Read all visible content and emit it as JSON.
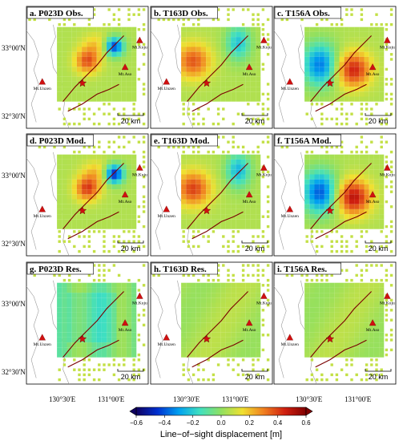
{
  "panels": [
    {
      "label": "a. P023D Obs.",
      "track": "P023D",
      "kind": "obs"
    },
    {
      "label": "b. T163D Obs.",
      "track": "T163D",
      "kind": "obs"
    },
    {
      "label": "c. T156A Obs.",
      "track": "T156A",
      "kind": "obs"
    },
    {
      "label": "d. P023D Mod.",
      "track": "P023D",
      "kind": "mod"
    },
    {
      "label": "e. T163D Mod.",
      "track": "T163D",
      "kind": "mod"
    },
    {
      "label": "f. T156A Mod.",
      "track": "T156A",
      "kind": "mod"
    },
    {
      "label": "g. P023D Res.",
      "track": "P023D",
      "kind": "res"
    },
    {
      "label": "h. T163D Res.",
      "track": "T163D",
      "kind": "res"
    },
    {
      "label": "i. T156A Res.",
      "track": "T156A",
      "kind": "res"
    }
  ],
  "volcanoes": [
    {
      "name": "Mt.Kuju"
    },
    {
      "name": "Mt.Aso"
    },
    {
      "name": "Mt.Unzen"
    }
  ],
  "latitude_labels": [
    "33°00'N",
    "32°30'N"
  ],
  "longitude_labels": [
    "130°30'E",
    "131°00'E"
  ],
  "scale_bar": "20 km",
  "colorbar": {
    "title": "Line−of−sight displacement [m]",
    "ticks": [
      "−0.6",
      "−0.4",
      "−0.2",
      "0.0",
      "0.2",
      "0.4",
      "0.6"
    ],
    "min": -0.6,
    "max": 0.6,
    "stops": [
      "#100060",
      "#0030d0",
      "#00a0f0",
      "#40e0c0",
      "#90e060",
      "#f0e030",
      "#f08020",
      "#d02010",
      "#800000"
    ]
  }
}
